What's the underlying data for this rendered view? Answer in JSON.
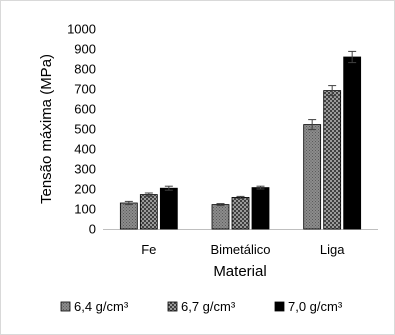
{
  "chart_data": {
    "type": "bar",
    "xlabel": "Material",
    "ylabel": "Tensão máxima (MPa)",
    "ylim": [
      0,
      1000
    ],
    "yticks": [
      0,
      100,
      200,
      300,
      400,
      500,
      600,
      700,
      800,
      900,
      1000
    ],
    "categories": [
      "Fe",
      "Bimetálico",
      "Liga"
    ],
    "grid": false,
    "legend_position": "bottom",
    "series": [
      {
        "name": "6,4 g/cm³",
        "values": [
          130,
          122,
          522
        ],
        "errors": [
          8,
          5,
          25
        ],
        "fill": "pattern-dense",
        "color": "#7f7f7f"
      },
      {
        "name": "6,7 g/cm³",
        "values": [
          172,
          158,
          692
        ],
        "errors": [
          8,
          5,
          25
        ],
        "fill": "pattern-checker",
        "color": "#595959"
      },
      {
        "name": "7,0 g/cm³",
        "values": [
          204,
          207,
          860
        ],
        "errors": [
          10,
          7,
          28
        ],
        "fill": "solid",
        "color": "#000000"
      }
    ]
  }
}
